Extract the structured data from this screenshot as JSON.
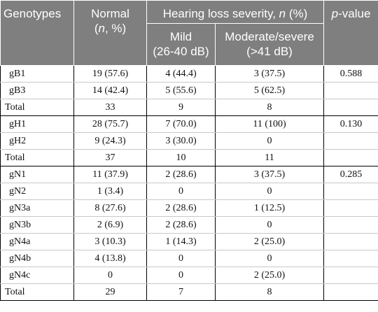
{
  "header": {
    "genotypes": "Genotypes",
    "normal_title": "Normal",
    "normal_sub_open": "(",
    "normal_sub_n": "n",
    "normal_sub_rest": ", %)",
    "severity_prefix": "Hearing loss severity, ",
    "severity_n": "n",
    "severity_suffix": " (%)",
    "p_letter": "p",
    "p_rest": "-value",
    "mild_line1": "Mild",
    "mild_line2": "(26-40 dB)",
    "mod_line1": "Moderate/severe",
    "mod_line2": "(>41 dB)"
  },
  "rows": [
    {
      "genotype": "gB1",
      "normal": "19 (57.6)",
      "mild": "4 (44.4)",
      "moderate": "3 (37.5)",
      "p": "0.588",
      "total": false
    },
    {
      "genotype": "gB3",
      "normal": "14 (42.4)",
      "mild": "5 (55.6)",
      "moderate": "5 (62.5)",
      "p": "",
      "total": false
    },
    {
      "genotype": "Total",
      "normal": "33",
      "mild": "9",
      "moderate": "8",
      "p": "",
      "total": true
    },
    {
      "genotype": "gH1",
      "normal": "28 (75.7)",
      "mild": "7 (70.0)",
      "moderate": "11 (100)",
      "p": "0.130",
      "total": false
    },
    {
      "genotype": "gH2",
      "normal": "9 (24.3)",
      "mild": "3 (30.0)",
      "moderate": "0",
      "p": "",
      "total": false
    },
    {
      "genotype": "Total",
      "normal": "37",
      "mild": "10",
      "moderate": "11",
      "p": "",
      "total": true
    },
    {
      "genotype": "gN1",
      "normal": "11 (37.9)",
      "mild": "2 (28.6)",
      "moderate": "3 (37.5)",
      "p": "0.285",
      "total": false
    },
    {
      "genotype": "gN2",
      "normal": "1 (3.4)",
      "mild": "0",
      "moderate": "0",
      "p": "",
      "total": false
    },
    {
      "genotype": "gN3a",
      "normal": "8 (27.6)",
      "mild": "2 (28.6)",
      "moderate": "1 (12.5)",
      "p": "",
      "total": false
    },
    {
      "genotype": "gN3b",
      "normal": "2 (6.9)",
      "mild": "2 (28.6)",
      "moderate": "0",
      "p": "",
      "total": false
    },
    {
      "genotype": "gN4a",
      "normal": "3 (10.3)",
      "mild": "1 (14.3)",
      "moderate": "2 (25.0)",
      "p": "",
      "total": false
    },
    {
      "genotype": "gN4b",
      "normal": "4 (13.8)",
      "mild": "0",
      "moderate": "0",
      "p": "",
      "total": false
    },
    {
      "genotype": "gN4c",
      "normal": "0",
      "mild": "0",
      "moderate": "2 (25.0)",
      "p": "",
      "total": false
    },
    {
      "genotype": "Total",
      "normal": "29",
      "mild": "7",
      "moderate": "8",
      "p": "",
      "total": true
    }
  ]
}
